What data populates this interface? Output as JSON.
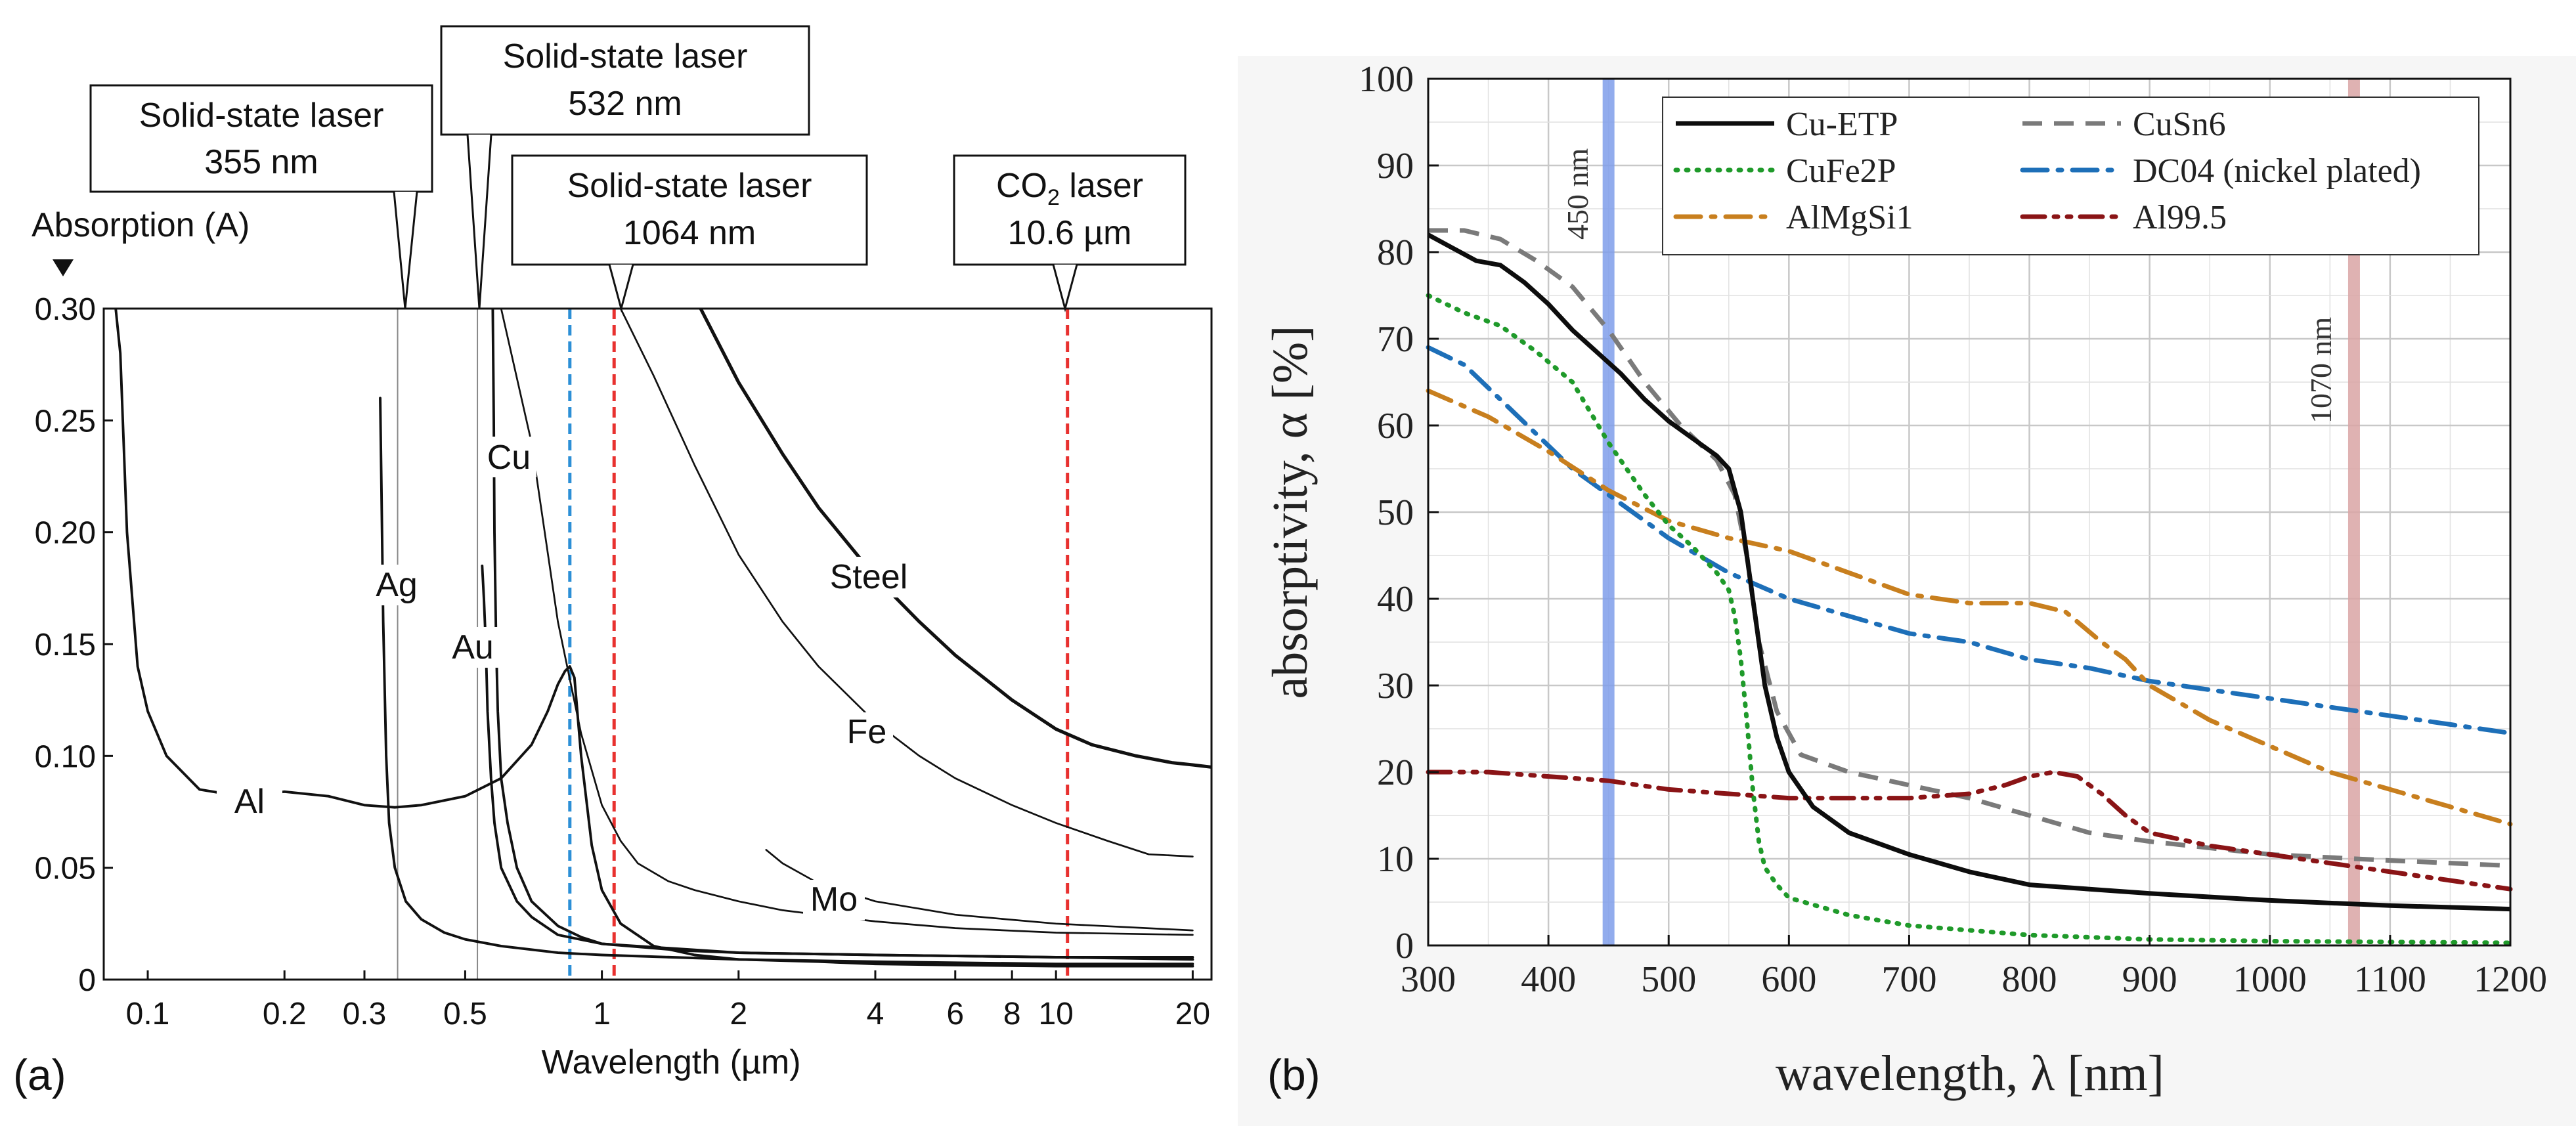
{
  "panels": {
    "a": {
      "label": "(a)"
    },
    "b": {
      "label": "(b)"
    }
  },
  "chart_data": [
    {
      "type": "line",
      "panel": "a",
      "ylabel": "Absorption (A)",
      "xlabel": "Wavelength (µm)",
      "xscale": "log",
      "xlim": [
        0.08,
        22
      ],
      "ylim": [
        0,
        0.3
      ],
      "xticks": [
        0.1,
        0.2,
        0.3,
        0.5,
        1,
        2,
        4,
        6,
        8,
        10,
        20
      ],
      "xtick_labels": [
        "0.1",
        "0.2",
        "0.3",
        "0.5",
        "1",
        "2",
        "4",
        "6",
        "8",
        "10",
        "20"
      ],
      "yticks": [
        0,
        0.05,
        0.1,
        0.15,
        0.2,
        0.25,
        0.3
      ],
      "ytick_labels": [
        "0",
        "0.05",
        "0.10",
        "0.15",
        "0.20",
        "0.25",
        "0.30"
      ],
      "grid": false,
      "series": [
        {
          "name": "Al",
          "color": "#111111",
          "lw": 2.6,
          "x": [
            0.085,
            0.087,
            0.09,
            0.095,
            0.1,
            0.11,
            0.13,
            0.16,
            0.2,
            0.25,
            0.3,
            0.35,
            0.4,
            0.5,
            0.6,
            0.7,
            0.76,
            0.8,
            0.83,
            0.85,
            0.87,
            0.9,
            0.95,
            1.0,
            1.1,
            1.3,
            1.6,
            2,
            3,
            4,
            6,
            10,
            20
          ],
          "y": [
            0.3,
            0.28,
            0.2,
            0.14,
            0.12,
            0.1,
            0.085,
            0.082,
            0.084,
            0.082,
            0.078,
            0.077,
            0.078,
            0.082,
            0.09,
            0.105,
            0.12,
            0.132,
            0.138,
            0.14,
            0.135,
            0.1,
            0.06,
            0.04,
            0.025,
            0.015,
            0.011,
            0.009,
            0.008,
            0.007,
            0.0065,
            0.006,
            0.006
          ]
        },
        {
          "name": "Ag",
          "color": "#111111",
          "lw": 2.6,
          "x": [
            0.325,
            0.327,
            0.33,
            0.335,
            0.34,
            0.35,
            0.37,
            0.4,
            0.45,
            0.5,
            0.6,
            0.8,
            1,
            2,
            4,
            10,
            20
          ],
          "y": [
            0.26,
            0.22,
            0.16,
            0.1,
            0.07,
            0.05,
            0.035,
            0.027,
            0.021,
            0.018,
            0.015,
            0.012,
            0.011,
            0.009,
            0.008,
            0.007,
            0.007
          ]
        },
        {
          "name": "Cu",
          "color": "#111111",
          "lw": 2.6,
          "x": [
            0.575,
            0.578,
            0.58,
            0.585,
            0.59,
            0.6,
            0.62,
            0.65,
            0.7,
            0.8,
            0.9,
            1,
            1.5,
            2,
            4,
            10,
            20
          ],
          "y": [
            0.3,
            0.25,
            0.2,
            0.15,
            0.12,
            0.09,
            0.07,
            0.05,
            0.035,
            0.024,
            0.019,
            0.016,
            0.013,
            0.012,
            0.011,
            0.01,
            0.01
          ]
        },
        {
          "name": "Au",
          "color": "#111111",
          "lw": 2.6,
          "x": [
            0.545,
            0.55,
            0.555,
            0.56,
            0.57,
            0.58,
            0.6,
            0.65,
            0.7,
            0.8,
            1,
            2,
            4,
            10,
            20
          ],
          "y": [
            0.185,
            0.17,
            0.15,
            0.12,
            0.09,
            0.07,
            0.05,
            0.035,
            0.028,
            0.02,
            0.016,
            0.012,
            0.011,
            0.01,
            0.009
          ]
        },
        {
          "name": "Mo",
          "color": "#111111",
          "lw": 1.8,
          "x": [
            0.6,
            0.7,
            0.8,
            0.9,
            1.0,
            1.1,
            1.2,
            1.4,
            1.6,
            2.0,
            2.5,
            3,
            4,
            6,
            10,
            20
          ],
          "y": [
            0.3,
            0.24,
            0.16,
            0.11,
            0.078,
            0.062,
            0.052,
            0.044,
            0.04,
            0.035,
            0.031,
            0.029,
            0.026,
            0.023,
            0.021,
            0.02
          ]
        },
        {
          "name": "Mo",
          "color": "#111111",
          "lw": 1.8,
          "x": [
            2.3,
            2.5,
            3,
            4,
            6,
            10,
            20
          ],
          "y": [
            0.058,
            0.052,
            0.043,
            0.035,
            0.029,
            0.025,
            0.022
          ]
        },
        {
          "name": "Fe",
          "color": "#111111",
          "lw": 1.8,
          "x": [
            1.1,
            1.3,
            1.6,
            2,
            2.5,
            3,
            4,
            5,
            6,
            8,
            10,
            13,
            16,
            20
          ],
          "y": [
            0.3,
            0.27,
            0.23,
            0.19,
            0.16,
            0.14,
            0.115,
            0.1,
            0.09,
            0.078,
            0.07,
            0.062,
            0.056,
            0.055
          ]
        },
        {
          "name": "Steel",
          "color": "#111111",
          "lw": 3.4,
          "x": [
            1.65,
            2,
            2.5,
            3,
            4,
            5,
            6,
            8,
            10,
            12,
            15,
            18,
            20,
            22
          ],
          "y": [
            0.3,
            0.267,
            0.235,
            0.211,
            0.18,
            0.16,
            0.145,
            0.125,
            0.112,
            0.105,
            0.1,
            0.097,
            0.096,
            0.095
          ]
        }
      ],
      "vlines": [
        {
          "x": 0.355,
          "style": "thin",
          "color": "#888888",
          "callout": "Solid-state laser\n355 nm"
        },
        {
          "x": 0.532,
          "style": "thin",
          "color": "#888888",
          "callout": "Solid-state laser\n532 nm"
        },
        {
          "x": 1.064,
          "style": "dashed",
          "color": "#e8312f",
          "callout": "Solid-state laser\n1064 nm"
        },
        {
          "x": 10.6,
          "style": "dashed",
          "color": "#e8312f",
          "callout": "CO₂ laser\n10.6 µm"
        },
        {
          "x": 0.85,
          "style": "dashed",
          "color": "#2c8fd6",
          "callout": ""
        }
      ],
      "callouts": {
        "l355_line1": "Solid-state laser",
        "l355_line2": "355 nm",
        "l532_line1": "Solid-state laser",
        "l532_line2": "532 nm",
        "l1064_line1": "Solid-state laser",
        "l1064_line2": "1064 nm",
        "co2_line1a": "CO",
        "co2_line1sub": "2",
        "co2_line1b": " laser",
        "co2_line2": "10.6 µm"
      },
      "curve_labels": [
        "Al",
        "Ag",
        "Cu",
        "Au",
        "Mo",
        "Fe",
        "Steel"
      ]
    },
    {
      "type": "line",
      "panel": "b",
      "xlabel": "wavelength, λ [nm]",
      "ylabel": "absorptivity, α [%]",
      "xlim": [
        300,
        1200
      ],
      "ylim": [
        0,
        100
      ],
      "xticks": [
        300,
        400,
        500,
        600,
        700,
        800,
        900,
        1000,
        1100,
        1200
      ],
      "yticks": [
        0,
        10,
        20,
        30,
        40,
        50,
        60,
        70,
        80,
        90,
        100
      ],
      "grid": true,
      "legend_position": "top",
      "bands": [
        {
          "x": 450,
          "label": "450 nm",
          "color": "#7f9dea"
        },
        {
          "x": 1070,
          "label": "1070 nm",
          "color": "#d9a4a4"
        }
      ],
      "series": [
        {
          "name": "Cu-ETP",
          "color": "#0d0d0d",
          "dash": "solid",
          "x": [
            300,
            320,
            340,
            360,
            380,
            400,
            420,
            440,
            460,
            480,
            500,
            520,
            540,
            550,
            560,
            570,
            580,
            590,
            600,
            620,
            650,
            700,
            750,
            800,
            850,
            900,
            1000,
            1100,
            1200
          ],
          "y": [
            82,
            80.5,
            79,
            78.5,
            76.5,
            74,
            71,
            68.5,
            66,
            63,
            60.5,
            58.5,
            56.5,
            55,
            50,
            40,
            30,
            24,
            20,
            16,
            13,
            10.5,
            8.5,
            7,
            6.5,
            6,
            5.2,
            4.6,
            4.2
          ]
        },
        {
          "name": "CuFe2P",
          "color": "#1f9a2a",
          "dash": "dot",
          "x": [
            300,
            330,
            360,
            390,
            420,
            450,
            480,
            500,
            520,
            540,
            550,
            555,
            560,
            565,
            570,
            575,
            580,
            590,
            600,
            650,
            700,
            800,
            900,
            1000,
            1100,
            1200
          ],
          "y": [
            75,
            73,
            71.5,
            68.5,
            65,
            58,
            52,
            48.5,
            46,
            43,
            41,
            38,
            33,
            26,
            18,
            12,
            9,
            7,
            5.5,
            3.5,
            2.3,
            1.2,
            0.7,
            0.5,
            0.4,
            0.3
          ]
        },
        {
          "name": "AlMgSi1",
          "color": "#c87f1e",
          "dash": "dashdot",
          "x": [
            300,
            350,
            400,
            450,
            500,
            550,
            600,
            650,
            700,
            750,
            800,
            830,
            860,
            880,
            900,
            950,
            1000,
            1050,
            1100,
            1150,
            1200
          ],
          "y": [
            64,
            61,
            57,
            52.5,
            49,
            47,
            45.5,
            43,
            40.5,
            39.5,
            39.5,
            38.5,
            35,
            33,
            30,
            26,
            23,
            20,
            18,
            16,
            14
          ]
        },
        {
          "name": "CuSn6",
          "color": "#7a7a7a",
          "dash": "dash",
          "x": [
            300,
            330,
            360,
            390,
            420,
            450,
            480,
            510,
            540,
            555,
            565,
            575,
            590,
            610,
            650,
            700,
            750,
            800,
            850,
            900,
            1000,
            1100,
            1200
          ],
          "y": [
            82.5,
            82.5,
            81.5,
            79,
            76,
            71,
            65,
            60,
            56,
            52,
            45,
            35,
            27,
            22,
            20,
            18.5,
            17,
            15,
            13,
            12,
            10.5,
            9.8,
            9.2
          ]
        },
        {
          "name": "DC04 (nickel plated)",
          "color": "#1d6fb8",
          "dash": "dashdot",
          "x": [
            300,
            330,
            360,
            390,
            420,
            450,
            500,
            550,
            600,
            650,
            700,
            750,
            800,
            850,
            900,
            950,
            1000,
            1050,
            1100,
            1150,
            1200
          ],
          "y": [
            69,
            67,
            63,
            59,
            55,
            52,
            47,
            43,
            40,
            38,
            36,
            35,
            33,
            32,
            30.5,
            29.5,
            28.5,
            27.5,
            26.5,
            25.5,
            24.5
          ]
        },
        {
          "name": "Al99.5",
          "color": "#8a1416",
          "dash": "dashdotdot",
          "x": [
            300,
            350,
            400,
            450,
            500,
            550,
            600,
            650,
            700,
            750,
            780,
            800,
            820,
            840,
            860,
            880,
            900,
            950,
            1000,
            1050,
            1100,
            1150,
            1200
          ],
          "y": [
            20,
            20,
            19.5,
            19,
            18,
            17.5,
            17,
            17,
            17,
            17.5,
            18.5,
            19.5,
            20,
            19.5,
            17.5,
            15,
            13,
            11.5,
            10.5,
            9.5,
            8.5,
            7.5,
            6.5
          ]
        }
      ]
    }
  ]
}
